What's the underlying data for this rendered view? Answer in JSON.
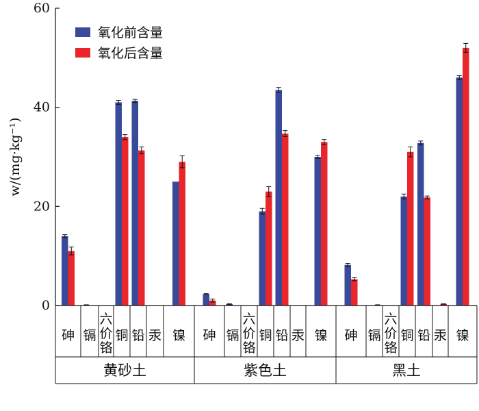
{
  "chart_data": {
    "type": "bar",
    "ylabel": "w/(mg·kg⁻¹)",
    "ylim": [
      0,
      60
    ],
    "yticks": [
      0,
      20,
      40,
      60
    ],
    "grid": false,
    "legend_position": "top-left",
    "groups": [
      "黄砂土",
      "紫色土",
      "黑土"
    ],
    "categories": [
      "砷",
      "镉",
      "六价铬",
      "铜",
      "铅",
      "汞",
      "镍"
    ],
    "series": [
      {
        "name": "氧化前含量",
        "color": "#3a4a9a",
        "values": [
          [
            14.0,
            0.1,
            0.0,
            41.0,
            41.3,
            0.0,
            25.0
          ],
          [
            2.3,
            0.3,
            0.0,
            19.0,
            43.5,
            0.0,
            30.0
          ],
          [
            8.2,
            0.0,
            0.0,
            22.0,
            32.8,
            0.0,
            46.0
          ]
        ],
        "errors": [
          [
            0.3,
            0.05,
            0,
            0.4,
            0.3,
            0,
            0
          ],
          [
            0.1,
            0.05,
            0,
            0.6,
            0.5,
            0,
            0.3
          ],
          [
            0.3,
            0,
            0,
            0.5,
            0.4,
            0,
            0.4
          ]
        ]
      },
      {
        "name": "氧化后含量",
        "color": "#e8262c",
        "values": [
          [
            11.0,
            0.0,
            0.0,
            34.0,
            31.3,
            0.0,
            29.0
          ],
          [
            1.0,
            0.0,
            0.0,
            23.0,
            34.7,
            0.0,
            33.0
          ],
          [
            5.3,
            0.1,
            0.0,
            31.0,
            21.8,
            0.3,
            52.0
          ]
        ],
        "errors": [
          [
            0.8,
            0,
            0,
            0.5,
            0.7,
            0,
            1.2
          ],
          [
            0.3,
            0,
            0,
            1.0,
            0.6,
            0,
            0.5
          ],
          [
            0.3,
            0.05,
            0,
            1.0,
            0.3,
            0.05,
            0.9
          ]
        ]
      }
    ]
  }
}
